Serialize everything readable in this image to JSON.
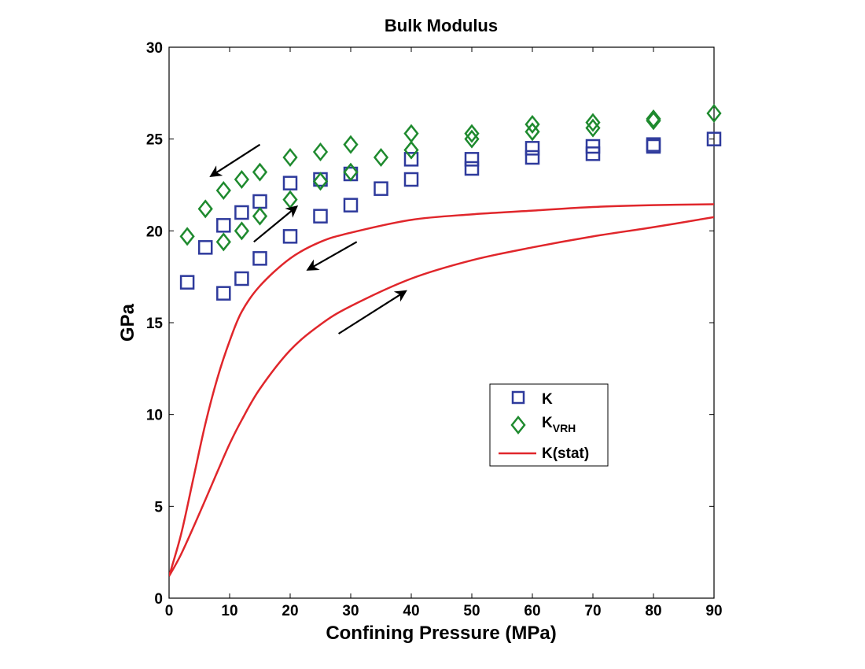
{
  "chart_data": {
    "type": "scatter",
    "title": "Bulk Modulus",
    "xlabel": "Confining Pressure (MPa)",
    "ylabel": "GPa",
    "xlim": [
      0,
      90
    ],
    "ylim": [
      0,
      30
    ],
    "xticks": [
      "0",
      "10",
      "20",
      "30",
      "40",
      "50",
      "60",
      "70",
      "80",
      "90"
    ],
    "yticks": [
      "0",
      "5",
      "10",
      "15",
      "20",
      "25",
      "30"
    ],
    "grid": false,
    "legend_position": "center-right",
    "series": [
      {
        "name": "K",
        "label_main": "K",
        "label_sub": "",
        "marker": "square",
        "color": "#2E3A9C",
        "points": [
          [
            3,
            17.2
          ],
          [
            6,
            19.1
          ],
          [
            9,
            16.6
          ],
          [
            9,
            20.3
          ],
          [
            12,
            17.4
          ],
          [
            12,
            21.0
          ],
          [
            15,
            18.5
          ],
          [
            15,
            21.6
          ],
          [
            20,
            19.7
          ],
          [
            20,
            22.6
          ],
          [
            25,
            20.8
          ],
          [
            25,
            22.8
          ],
          [
            30,
            21.4
          ],
          [
            30,
            23.1
          ],
          [
            35,
            22.3
          ],
          [
            40,
            22.8
          ],
          [
            40,
            23.9
          ],
          [
            50,
            23.4
          ],
          [
            50,
            23.9
          ],
          [
            60,
            24.0
          ],
          [
            60,
            24.5
          ],
          [
            70,
            24.2
          ],
          [
            70,
            24.6
          ],
          [
            80,
            24.6
          ],
          [
            80,
            24.7
          ],
          [
            90,
            25.0
          ]
        ]
      },
      {
        "name": "KVRH",
        "label_main": "K",
        "label_sub": "VRH",
        "marker": "diamond",
        "color": "#1E8A2E",
        "points": [
          [
            3,
            19.7
          ],
          [
            6,
            21.2
          ],
          [
            9,
            19.4
          ],
          [
            9,
            22.2
          ],
          [
            12,
            20.0
          ],
          [
            12,
            22.8
          ],
          [
            15,
            20.8
          ],
          [
            15,
            23.2
          ],
          [
            20,
            21.7
          ],
          [
            20,
            24.0
          ],
          [
            25,
            22.7
          ],
          [
            25,
            24.3
          ],
          [
            30,
            23.2
          ],
          [
            30,
            24.7
          ],
          [
            35,
            24.0
          ],
          [
            40,
            24.4
          ],
          [
            40,
            25.3
          ],
          [
            50,
            25.0
          ],
          [
            50,
            25.3
          ],
          [
            60,
            25.4
          ],
          [
            60,
            25.8
          ],
          [
            70,
            25.6
          ],
          [
            70,
            25.9
          ],
          [
            80,
            26.0
          ],
          [
            80,
            26.1
          ],
          [
            90,
            26.4
          ]
        ]
      },
      {
        "name": "K(stat)",
        "label_main": "K(stat)",
        "label_sub": "",
        "marker": "line",
        "color": "#E0262B",
        "curves": [
          {
            "branch": "unloading",
            "points": [
              [
                0,
                1.2
              ],
              [
                2,
                3.5
              ],
              [
                4,
                6.5
              ],
              [
                6,
                9.5
              ],
              [
                8,
                12.0
              ],
              [
                10,
                14.0
              ],
              [
                12,
                15.6
              ],
              [
                15,
                17.0
              ],
              [
                20,
                18.5
              ],
              [
                25,
                19.4
              ],
              [
                30,
                19.9
              ],
              [
                40,
                20.6
              ],
              [
                50,
                20.9
              ],
              [
                60,
                21.1
              ],
              [
                70,
                21.3
              ],
              [
                80,
                21.4
              ],
              [
                90,
                21.45
              ]
            ]
          },
          {
            "branch": "loading",
            "points": [
              [
                0,
                1.2
              ],
              [
                2,
                2.4
              ],
              [
                5,
                4.6
              ],
              [
                8,
                6.9
              ],
              [
                10,
                8.4
              ],
              [
                12,
                9.7
              ],
              [
                15,
                11.4
              ],
              [
                20,
                13.5
              ],
              [
                25,
                14.9
              ],
              [
                30,
                15.9
              ],
              [
                40,
                17.4
              ],
              [
                50,
                18.4
              ],
              [
                60,
                19.1
              ],
              [
                70,
                19.7
              ],
              [
                80,
                20.2
              ],
              [
                90,
                20.75
              ]
            ]
          }
        ]
      }
    ],
    "arrows": [
      {
        "from": [
          15,
          24.7
        ],
        "to": [
          7,
          23.0
        ]
      },
      {
        "from": [
          14,
          19.4
        ],
        "to": [
          21,
          21.3
        ]
      },
      {
        "from": [
          31,
          19.4
        ],
        "to": [
          23,
          17.9
        ]
      },
      {
        "from": [
          28,
          14.4
        ],
        "to": [
          39,
          16.7
        ]
      }
    ]
  }
}
